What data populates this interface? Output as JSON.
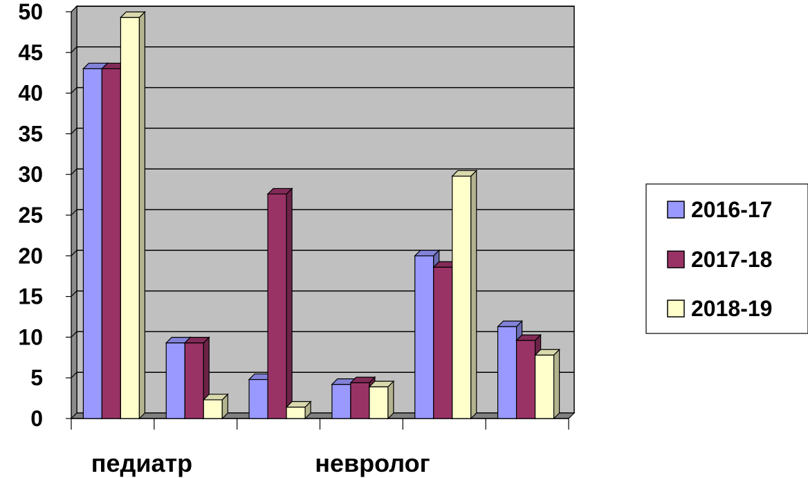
{
  "chart_data": {
    "type": "bar",
    "categories": [
      "педиатр",
      "",
      "",
      "невролог",
      "",
      ""
    ],
    "x_tick_labels_shown": [
      "педиатр",
      "невролог"
    ],
    "series": [
      {
        "name": "2016-17",
        "values": [
          43,
          9.3,
          4.8,
          4.2,
          20,
          11.3
        ],
        "color": "#9999ff"
      },
      {
        "name": "2017-18",
        "values": [
          43,
          9.3,
          27.6,
          4.4,
          18.6,
          9.6
        ],
        "color": "#993366"
      },
      {
        "name": "2018-19",
        "values": [
          49.3,
          2.3,
          1.4,
          3.9,
          29.8,
          7.8
        ],
        "color": "#ffffcc"
      }
    ],
    "ylim": [
      0,
      50
    ],
    "yticks": [
      0,
      5,
      10,
      15,
      20,
      25,
      30,
      35,
      40,
      45,
      50
    ],
    "grid": true,
    "legend_position": "right",
    "plot_background": "#c0c0c0"
  }
}
